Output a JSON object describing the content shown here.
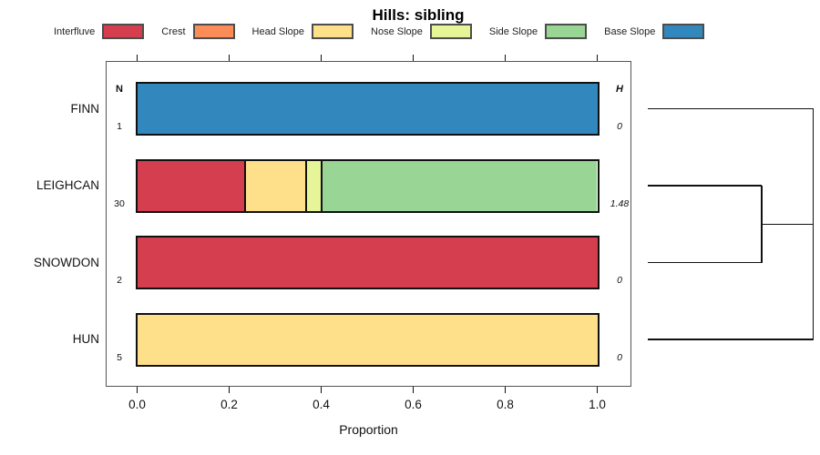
{
  "title": "Hills: sibling",
  "chart_data": {
    "type": "bar",
    "orientation": "horizontal",
    "stacked": true,
    "title": "Hills: sibling",
    "xlabel": "Proportion",
    "xlim": [
      0,
      1
    ],
    "xticks": [
      {
        "value": 0.0,
        "label": "0.0"
      },
      {
        "value": 0.2,
        "label": "0.2"
      },
      {
        "value": 0.4,
        "label": "0.4"
      },
      {
        "value": 0.6,
        "label": "0.6"
      },
      {
        "value": 0.8,
        "label": "0.8"
      },
      {
        "value": 1.0,
        "label": "1.0"
      }
    ],
    "categories": [
      "FINN",
      "LEIGHCAN",
      "SNOWDON",
      "HUN"
    ],
    "left_column": {
      "header": "N",
      "values": [
        "1",
        "30",
        "2",
        "5"
      ]
    },
    "right_column": {
      "header": "H",
      "values": [
        "0",
        "1.48",
        "0",
        "0"
      ]
    },
    "legend_position": "top",
    "series": [
      {
        "name": "Interfluve",
        "color": "#d53e4f",
        "values": [
          0,
          0.233,
          1.0,
          0
        ]
      },
      {
        "name": "Crest",
        "color": "#fc8d59",
        "values": [
          0,
          0,
          0,
          0
        ]
      },
      {
        "name": "Head Slope",
        "color": "#fee08b",
        "values": [
          0,
          0.133,
          0,
          1.0
        ]
      },
      {
        "name": "Nose Slope",
        "color": "#e6f598",
        "values": [
          0,
          0.034,
          0,
          0
        ]
      },
      {
        "name": "Side Slope",
        "color": "#99d594",
        "values": [
          0,
          0.6,
          0,
          0
        ]
      },
      {
        "name": "Base Slope",
        "color": "#3288bd",
        "values": [
          1.0,
          0,
          0,
          0
        ]
      }
    ],
    "dendrogram": {
      "side": "right",
      "leaves": [
        "FINN",
        "LEIGHCAN",
        "SNOWDON",
        "HUN"
      ],
      "merges": [
        {
          "members": [
            "LEIGHCAN",
            "SNOWDON"
          ],
          "x_frac": 0.69
        },
        {
          "members": [
            "FINN",
            "@0",
            "HUN"
          ],
          "x_frac": 1.0
        }
      ]
    }
  }
}
